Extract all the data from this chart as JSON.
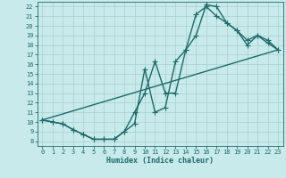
{
  "xlabel": "Humidex (Indice chaleur)",
  "ylabel": "",
  "xlim": [
    -0.5,
    23.5
  ],
  "ylim": [
    7.5,
    22.5
  ],
  "xticks": [
    0,
    1,
    2,
    3,
    4,
    5,
    6,
    7,
    8,
    9,
    10,
    11,
    12,
    13,
    14,
    15,
    16,
    17,
    18,
    19,
    20,
    21,
    22,
    23
  ],
  "yticks": [
    8,
    9,
    10,
    11,
    12,
    13,
    14,
    15,
    16,
    17,
    18,
    19,
    20,
    21,
    22
  ],
  "bg_color": "#c8eaea",
  "grid_color": "#a8d0d0",
  "line_color": "#1a6b6b",
  "line1_x": [
    0,
    1,
    2,
    3,
    4,
    5,
    6,
    7,
    8,
    9,
    10,
    11,
    12,
    13,
    14,
    15,
    16,
    17,
    18,
    19,
    20,
    21,
    22,
    23
  ],
  "line1_y": [
    10.2,
    10.0,
    9.8,
    9.2,
    8.7,
    8.2,
    8.2,
    8.2,
    9.0,
    11.0,
    13.0,
    16.3,
    13.0,
    13.0,
    17.5,
    19.0,
    22.2,
    22.0,
    20.3,
    19.5,
    18.0,
    19.0,
    18.2,
    17.5
  ],
  "line2_x": [
    0,
    1,
    2,
    3,
    4,
    5,
    6,
    7,
    8,
    9,
    10,
    11,
    12,
    13,
    14,
    15,
    16,
    17,
    18,
    19,
    20,
    21,
    22,
    23
  ],
  "line2_y": [
    10.2,
    10.0,
    9.8,
    9.2,
    8.7,
    8.2,
    8.2,
    8.2,
    9.0,
    9.8,
    15.5,
    11.0,
    11.5,
    16.3,
    17.5,
    21.2,
    22.0,
    21.0,
    20.3,
    19.5,
    18.5,
    19.0,
    18.5,
    17.5
  ],
  "line3_x": [
    0,
    23
  ],
  "line3_y": [
    10.2,
    17.5
  ],
  "marker": "+",
  "markersize": 4,
  "linewidth": 1.0,
  "tick_fontsize": 5.0,
  "xlabel_fontsize": 6.0
}
